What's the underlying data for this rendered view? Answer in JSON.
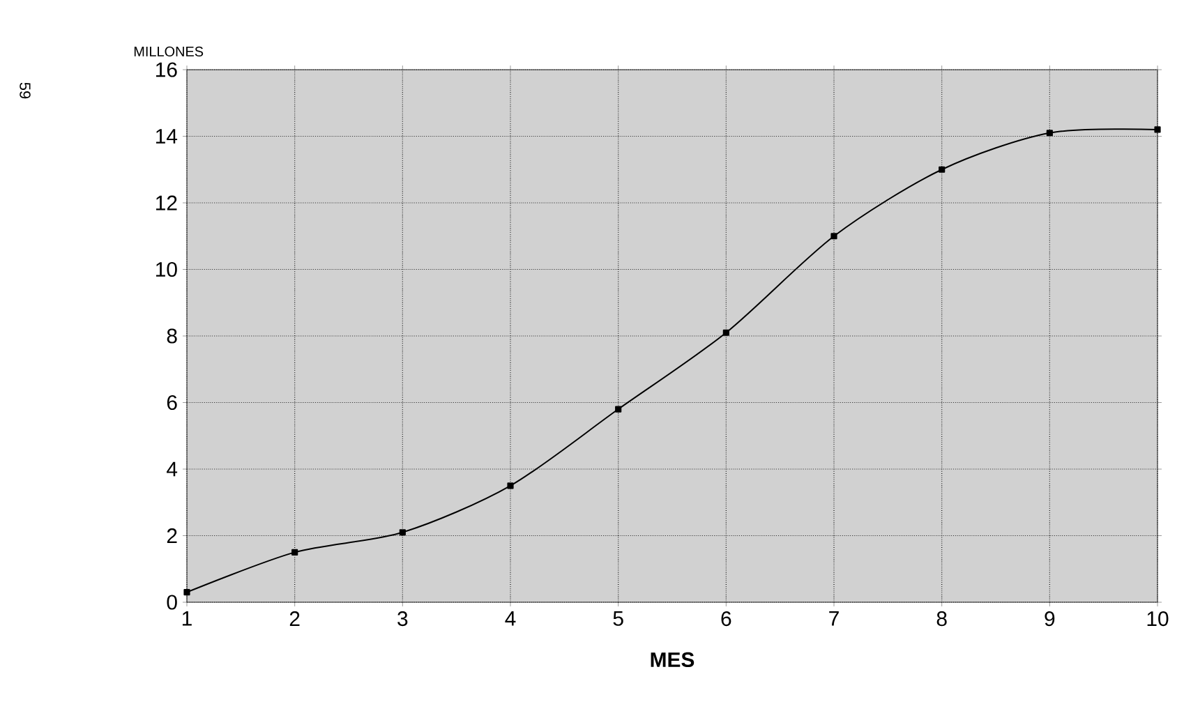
{
  "chart_data": {
    "type": "line",
    "xlabel": "MES",
    "ylabel": "MILLONES",
    "x": [
      1,
      2,
      3,
      4,
      5,
      6,
      7,
      8,
      9,
      10
    ],
    "series": [
      {
        "color": "#000000",
        "values": [
          0.3,
          1.5,
          2.1,
          3.5,
          5.8,
          8.1,
          11.0,
          13.0,
          14.1,
          14.2
        ]
      }
    ],
    "xlim": [
      1,
      10
    ],
    "xticks": [
      1,
      2,
      3,
      4,
      5,
      6,
      7,
      8,
      9,
      10
    ],
    "ylim": [
      0,
      16
    ],
    "yticks": [
      0,
      2,
      4,
      6,
      8,
      10,
      12,
      14,
      16
    ],
    "grid": true,
    "marker": "square",
    "line_style": "solid",
    "annotations": [
      "59"
    ]
  }
}
